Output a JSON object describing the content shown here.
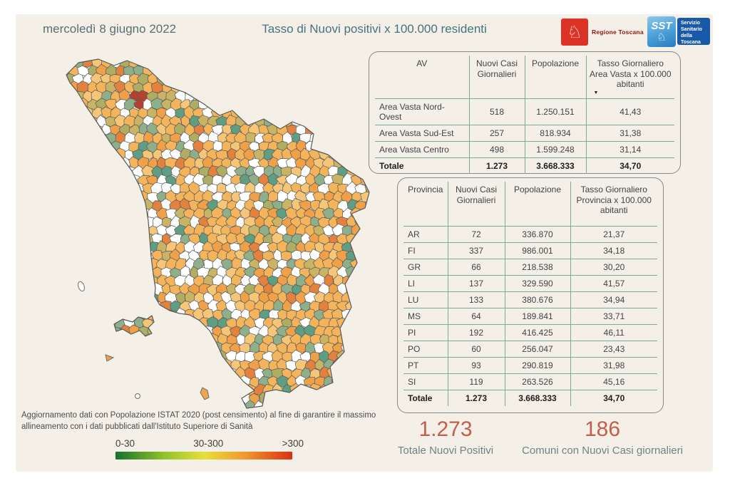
{
  "page": {
    "date": "mercoledì 8 giugno 2022",
    "title": "Tasso di Nuovi positivi x 100.000 residenti",
    "background_color": "#f5f0e7",
    "accent_colors": {
      "title": "#45737f",
      "kpi_value": "#c25f4a",
      "table_grid": "#7cab92"
    }
  },
  "logos": {
    "regione_toscana": {
      "label": "Regione Toscana",
      "square_color": "#dd3226",
      "icon": "pegasus-icon"
    },
    "sst": {
      "acronym": "SST",
      "lines": [
        "Servizio",
        "Sanitario",
        "della",
        "Toscana"
      ],
      "square_color": "#4a9fd8",
      "panel_color": "#1859a8",
      "icon": "pegasus-icon"
    }
  },
  "chart_data": [
    {
      "id": "area_vasta_table",
      "type": "table",
      "columns": [
        "AV",
        "Nuovi Casi Giornalieri",
        "Popolazione",
        "Tasso Giornaliero Area Vasta x 100.000 abitanti"
      ],
      "sort": {
        "column": "Tasso Giornaliero Area Vasta x 100.000 abitanti",
        "direction": "desc",
        "indicator": "▼"
      },
      "rows": [
        [
          "Area Vasta Nord-Ovest",
          "518",
          "1.250.151",
          "41,43"
        ],
        [
          "Area Vasta Sud-Est",
          "257",
          "818.934",
          "31,38"
        ],
        [
          "Area Vasta Centro",
          "498",
          "1.599.248",
          "31,14"
        ]
      ],
      "total_row": [
        "Totale",
        "1.273",
        "3.668.333",
        "34,70"
      ]
    },
    {
      "id": "province_table",
      "type": "table",
      "columns": [
        "Provincia",
        "Nuovi Casi Giornalieri",
        "Popolazione",
        "Tasso Giornaliero Provincia x 100.000 abitanti"
      ],
      "rows": [
        [
          "AR",
          "72",
          "336.870",
          "21,37"
        ],
        [
          "FI",
          "337",
          "986.001",
          "34,18"
        ],
        [
          "GR",
          "66",
          "218.538",
          "30,20"
        ],
        [
          "LI",
          "137",
          "329.590",
          "41,57"
        ],
        [
          "LU",
          "133",
          "380.676",
          "34,94"
        ],
        [
          "MS",
          "64",
          "189.841",
          "33,71"
        ],
        [
          "PI",
          "192",
          "416.425",
          "46,11"
        ],
        [
          "PO",
          "60",
          "256.047",
          "23,43"
        ],
        [
          "PT",
          "93",
          "290.819",
          "31,98"
        ],
        [
          "SI",
          "119",
          "263.526",
          "45,16"
        ]
      ],
      "total_row": [
        "Totale",
        "1.273",
        "3.668.333",
        "34,70"
      ]
    },
    {
      "id": "tuscany_choropleth",
      "type": "heatmap",
      "subtype": "choropleth-map",
      "region": "Toscana (comuni)",
      "values_labeled": false,
      "legend": {
        "labels": [
          "0-30",
          "30-300",
          ">300"
        ],
        "gradient": [
          "#15722c",
          "#93c32b",
          "#e6e03a",
          "#f09d2e",
          "#d93018"
        ]
      },
      "no_data_color": "#ffffff",
      "palette": [
        "#F4B45B",
        "#F6C678",
        "#EFA049",
        "#E2823E",
        "#C9B465",
        "#AFAD63",
        "#8FAF8B",
        "#609E83",
        "#B5402F",
        "#FFFFFF"
      ]
    },
    {
      "id": "kpi_totale_nuovi_positivi",
      "type": "kpi",
      "value": "1.273",
      "label": "Totale Nuovi Positivi"
    },
    {
      "id": "kpi_comuni_con_casi",
      "type": "kpi",
      "value": "186",
      "label": "Comuni con Nuovi Casi giornalieri"
    }
  ],
  "footnote": "Aggiornamento dati con Popolazione ISTAT 2020 (post censimento) al fine di garantire il massimo allineamento con i dati pubblicati dall'Istituto Superiore di Sanità"
}
